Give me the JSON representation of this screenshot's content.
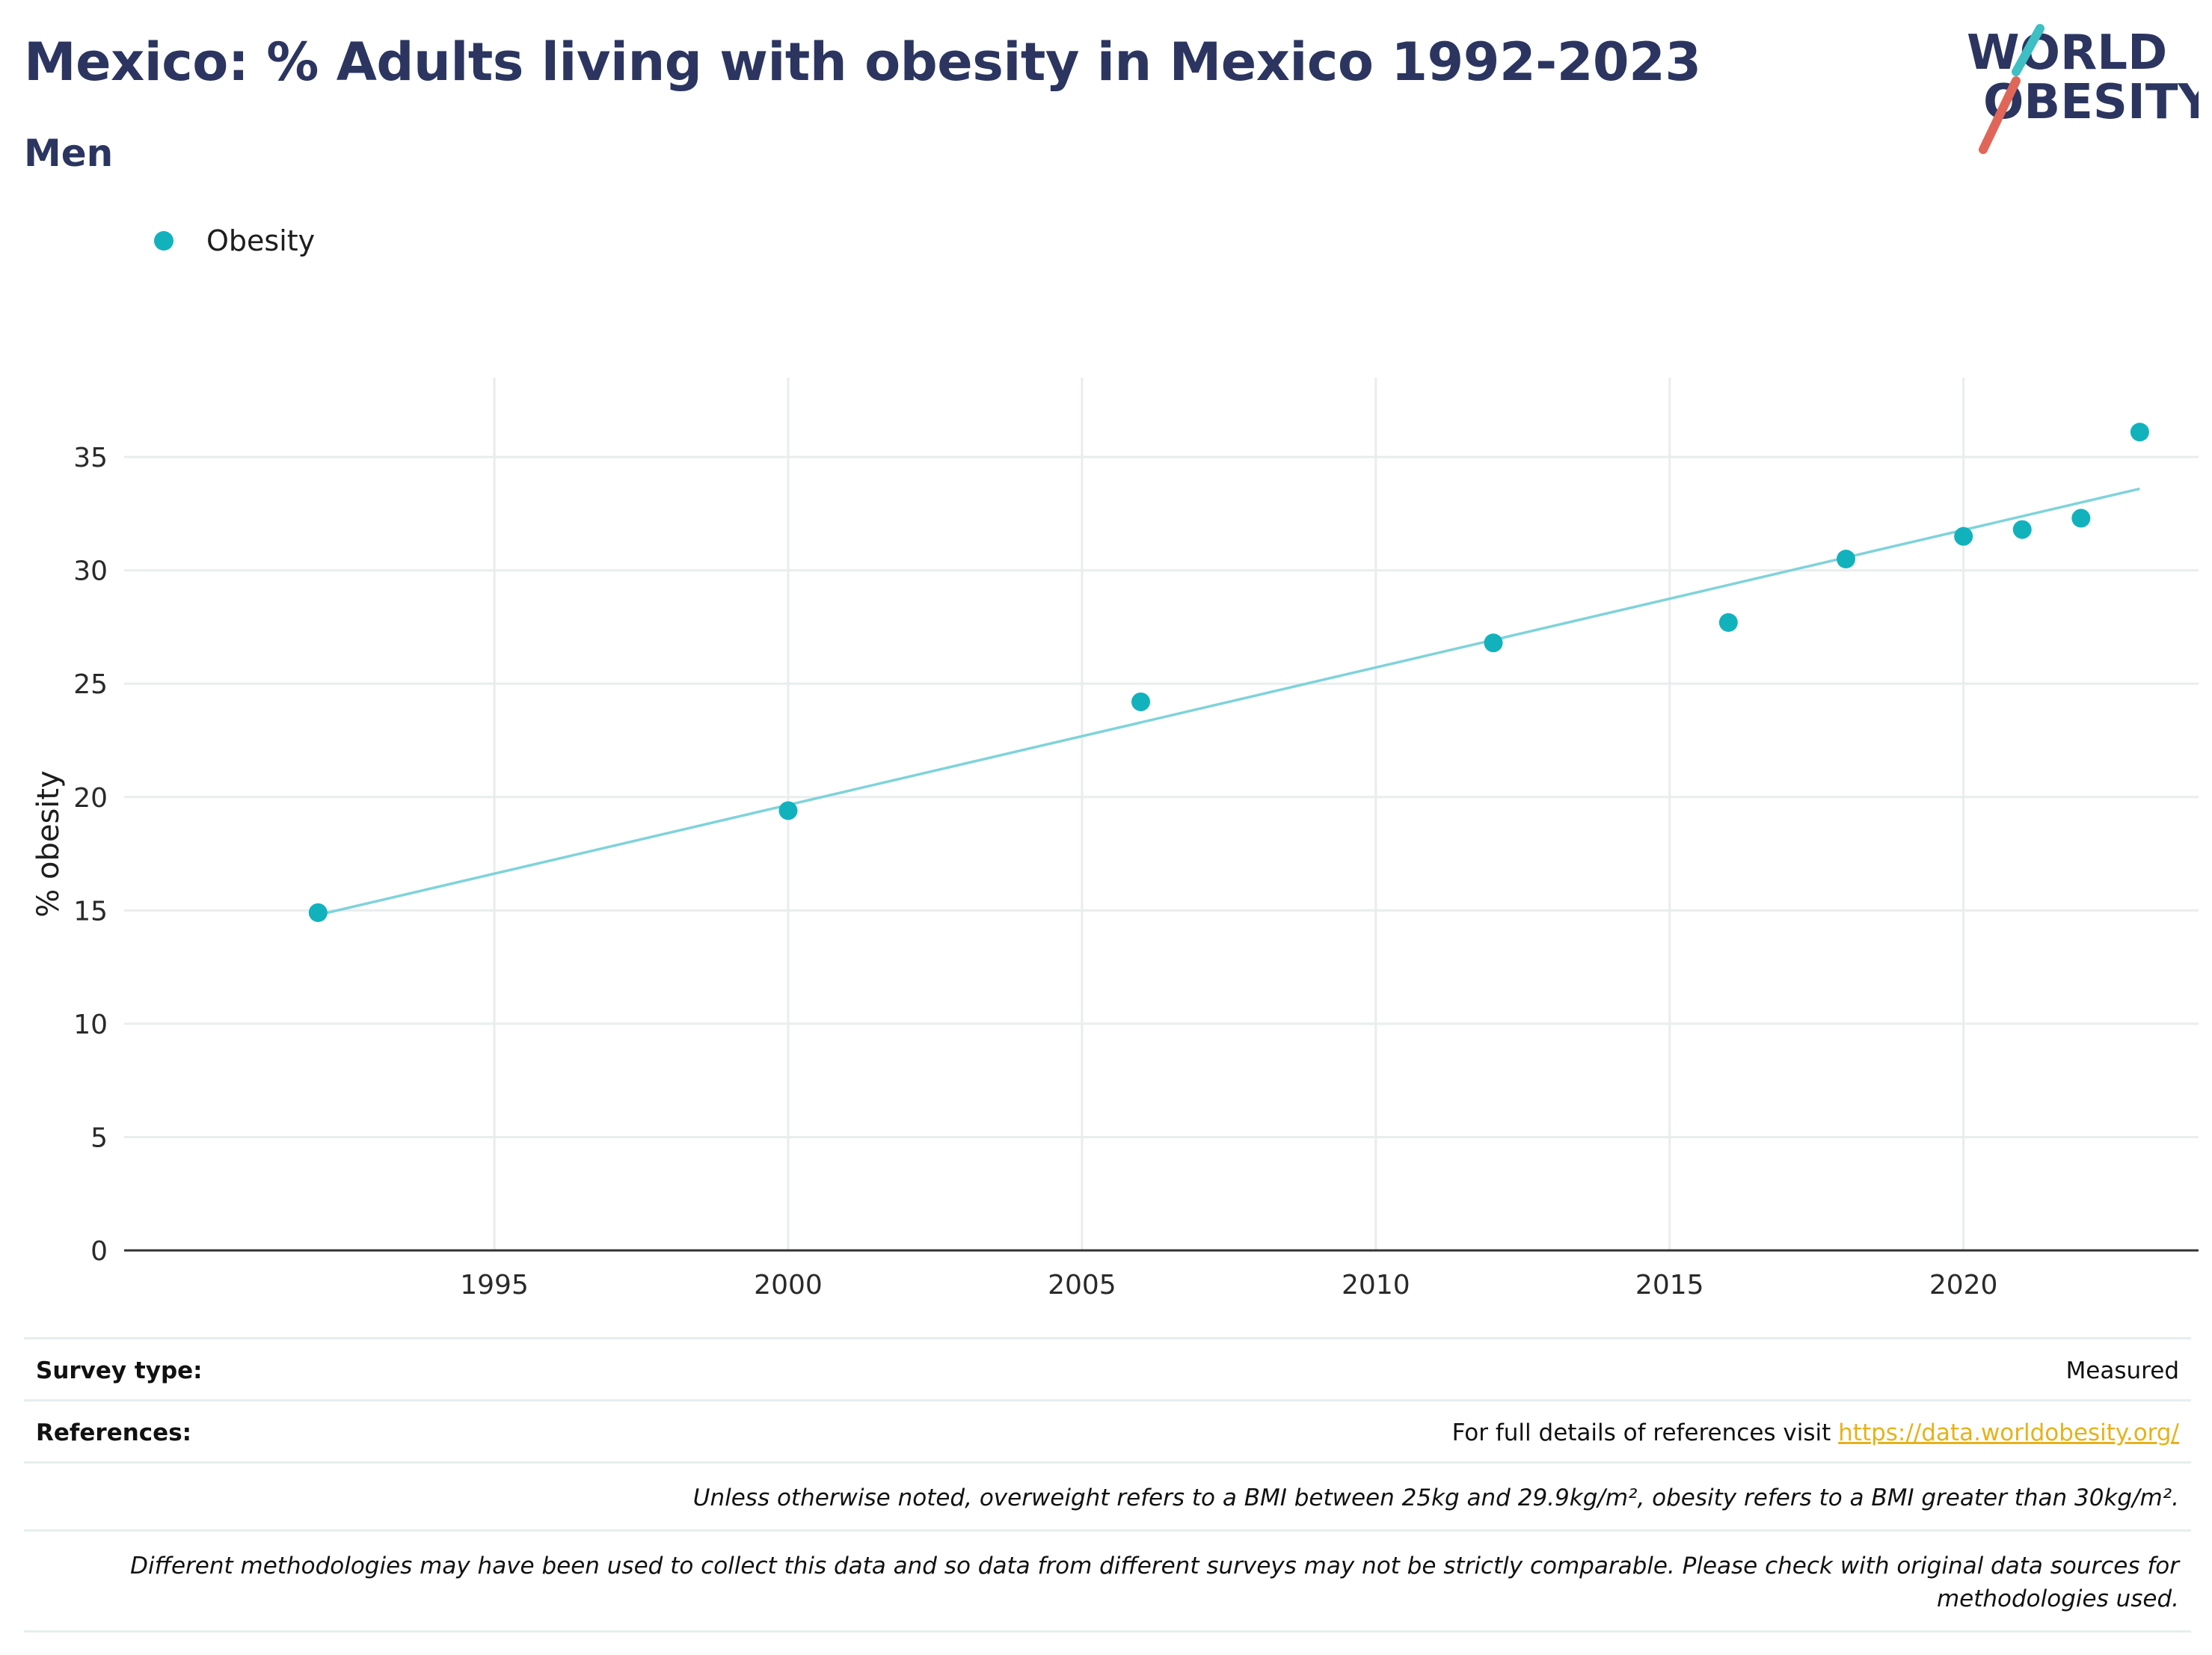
{
  "title": "Mexico: % Adults living with obesity in Mexico 1992-2023",
  "subtitle": "Men",
  "logo": {
    "line1": "WORLD",
    "line2": "OBESITY"
  },
  "colors": {
    "title": "#2b3560",
    "marker": "#12b2bd",
    "trend": "#7fd3da",
    "link": "#e6b21a",
    "logo_teal": "#3dbfc3",
    "logo_red": "#e0665a"
  },
  "chart_data": {
    "type": "scatter",
    "legend": [
      "Obesity"
    ],
    "ylabel": "% obesity",
    "xlabel": "",
    "x_ticks": [
      1995,
      2000,
      2005,
      2010,
      2015,
      2020
    ],
    "y_ticks": [
      0,
      5,
      10,
      15,
      20,
      25,
      30,
      35
    ],
    "xlim": [
      1988.7,
      2024
    ],
    "ylim": [
      0,
      38.5
    ],
    "grid": true,
    "legend_position": "top-left",
    "series": [
      {
        "name": "Obesity",
        "x": [
          1992,
          2000,
          2006,
          2012,
          2016,
          2018,
          2020,
          2021,
          2022,
          2023
        ],
        "values": [
          14.9,
          19.4,
          24.2,
          26.8,
          27.7,
          30.5,
          31.5,
          31.8,
          32.3,
          36.1
        ]
      }
    ],
    "trendline": {
      "x": [
        1992,
        2023
      ],
      "values": [
        14.8,
        33.6
      ]
    }
  },
  "footer": {
    "survey_label": "Survey type:",
    "survey_value": "Measured",
    "references_label": "References:",
    "references_text": "For full details of references visit ",
    "references_link": "https://data.worldobesity.org/",
    "note1": "Unless otherwise noted, overweight refers to a BMI between 25kg and 29.9kg/m², obesity refers to a BMI greater than 30kg/m².",
    "note2": "Different methodologies may have been used to collect this data and so data from different surveys may not be strictly comparable. Please check with original data sources for methodologies used."
  }
}
